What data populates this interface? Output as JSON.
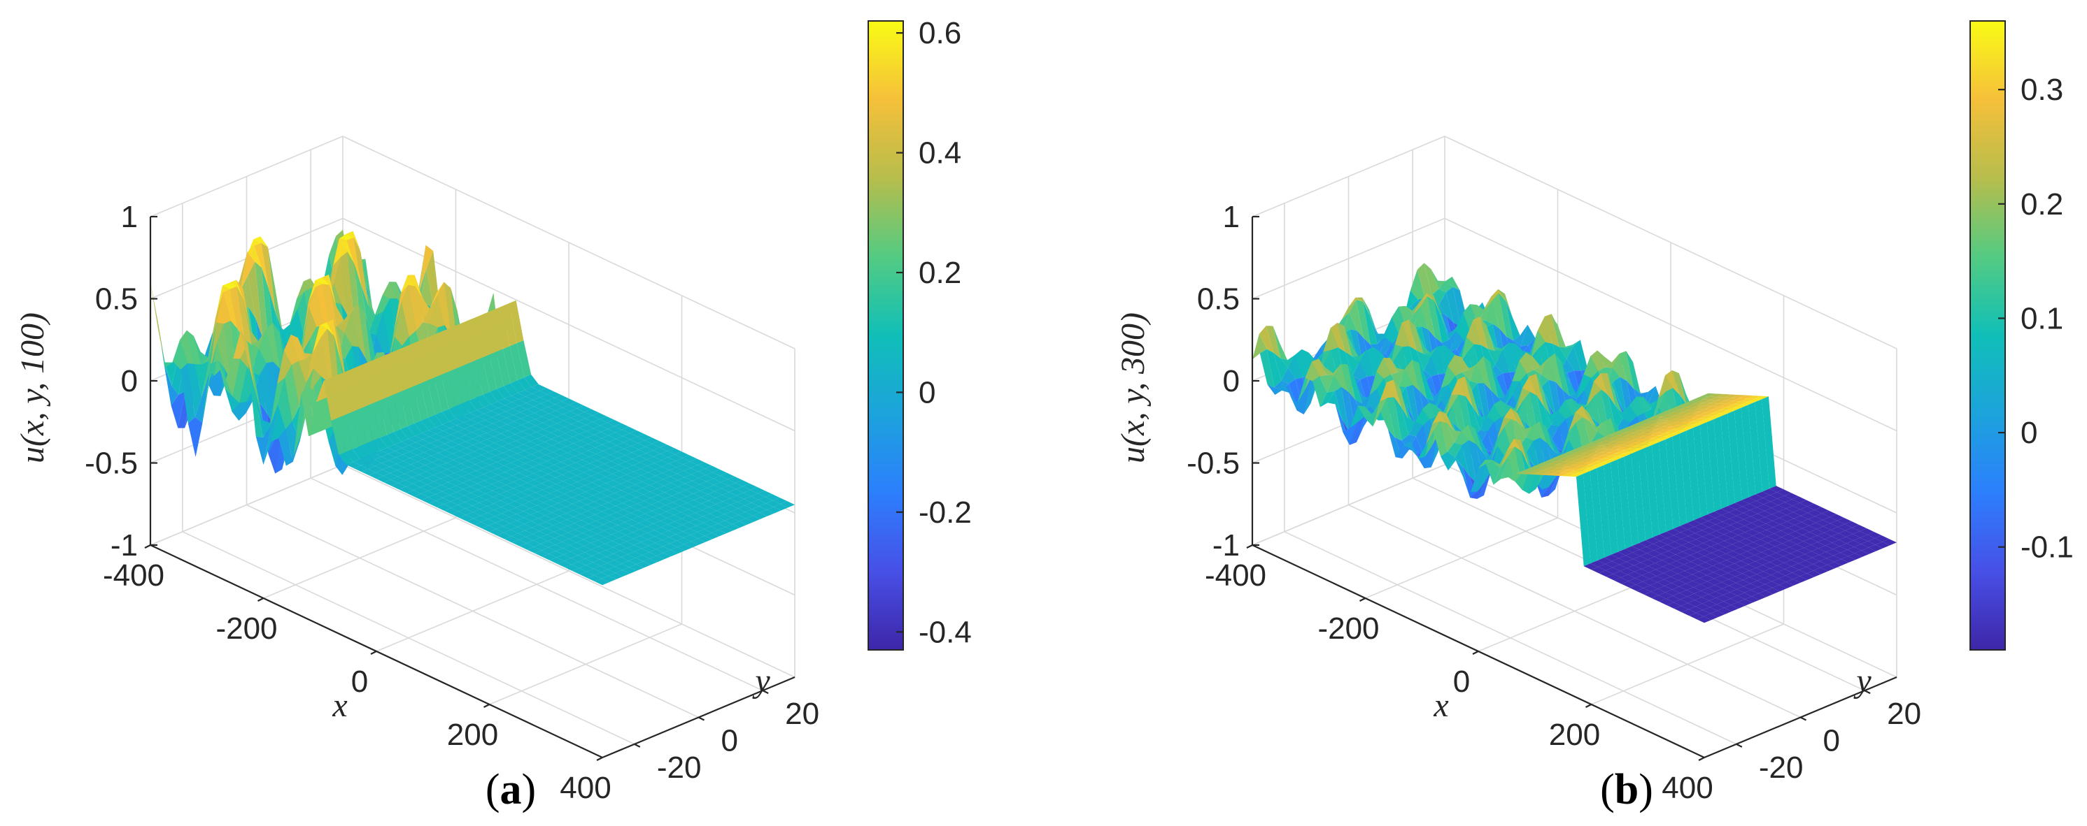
{
  "figure": {
    "panels": [
      {
        "label_open": "(",
        "label_letter": "a",
        "label_close": ")",
        "zlabel": "u(x, y, 100)",
        "xlabel": "x",
        "ylabel": "y",
        "colorbar": {
          "tick_labels": [
            "0.6",
            "0.4",
            "0.2",
            "0",
            "-0.2",
            "-0.4"
          ],
          "tick_values": [
            0.6,
            0.4,
            0.2,
            0,
            -0.2,
            -0.4
          ],
          "range": [
            -0.43,
            0.62
          ]
        }
      },
      {
        "label_open": "(",
        "label_letter": "b",
        "label_close": ")",
        "zlabel": "u(x, y, 300)",
        "xlabel": "x",
        "ylabel": "y",
        "colorbar": {
          "tick_labels": [
            "0.3",
            "0.2",
            "0.1",
            "0",
            "-0.1"
          ],
          "tick_values": [
            0.3,
            0.2,
            0.1,
            0,
            -0.1
          ],
          "range": [
            -0.19,
            0.36
          ]
        }
      }
    ]
  },
  "chart_data": [
    {
      "type": "surface",
      "title": "",
      "zlabel": "u(x, y, 100)",
      "xlabel": "x",
      "ylabel": "y",
      "xlim": [
        -400,
        400
      ],
      "ylim": [
        -30,
        30
      ],
      "zlim": [
        -1,
        1
      ],
      "x_ticks": [
        -400,
        -200,
        0,
        200,
        400
      ],
      "x_tick_labels": [
        "-400",
        "-200",
        "0",
        "200",
        "400"
      ],
      "y_ticks": [
        -20,
        0,
        20
      ],
      "y_tick_labels": [
        "-20",
        "0",
        "20"
      ],
      "z_ticks": [
        -1,
        -0.5,
        0,
        0.5,
        1
      ],
      "z_tick_labels": [
        "-1",
        "-0.5",
        "0",
        "0.5",
        "1"
      ],
      "colormap": "parula",
      "color_range": [
        -0.43,
        0.62
      ],
      "description_values": {
        "front_x_start": -130,
        "front_x_end": -60,
        "front_peak": 0.45,
        "wake_peak_max": 0.6,
        "wake_trough_min": -0.4,
        "flat_level": 0.05
      }
    },
    {
      "type": "surface",
      "title": "",
      "zlabel": "u(x, y, 300)",
      "xlabel": "x",
      "ylabel": "y",
      "xlim": [
        -400,
        400
      ],
      "ylim": [
        -30,
        30
      ],
      "zlim": [
        -1,
        1
      ],
      "x_ticks": [
        -400,
        -200,
        0,
        200,
        400
      ],
      "x_tick_labels": [
        "-400",
        "-200",
        "0",
        "200",
        "400"
      ],
      "y_ticks": [
        -20,
        0,
        20
      ],
      "y_tick_labels": [
        "-20",
        "0",
        "20"
      ],
      "z_ticks": [
        -1,
        -0.5,
        0,
        0.5,
        1
      ],
      "z_tick_labels": [
        "-1",
        "-0.5",
        "0",
        "0.5",
        "1"
      ],
      "colormap": "parula",
      "color_range": [
        -0.19,
        0.36
      ],
      "description_values": {
        "front_x_start": 60,
        "front_x_end": 185,
        "front_peak": 0.36,
        "wake_peak_max": 0.3,
        "wake_trough_min": -0.15,
        "flat_level": -0.18
      }
    }
  ]
}
